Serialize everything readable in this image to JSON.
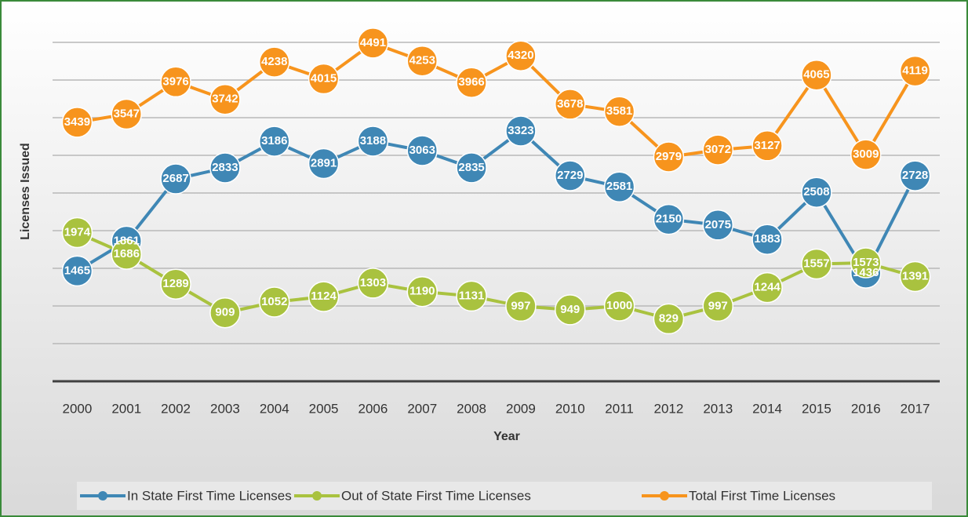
{
  "chart_data": {
    "type": "line",
    "x_label": "Year",
    "y_label": "Licenses Issued",
    "categories": [
      "2000",
      "2001",
      "2002",
      "2003",
      "2004",
      "2005",
      "2006",
      "2007",
      "2008",
      "2009",
      "2010",
      "2011",
      "2012",
      "2013",
      "2014",
      "2015",
      "2016",
      "2017"
    ],
    "series": [
      {
        "name": "In State First Time Licenses",
        "color": "#3f87b5",
        "values": [
          1465,
          1861,
          2687,
          2833,
          3186,
          2891,
          3188,
          3063,
          2835,
          3323,
          2729,
          2581,
          2150,
          2075,
          1883,
          2508,
          1436,
          2728
        ]
      },
      {
        "name": "Out of State First Time Licenses",
        "color": "#a9c23f",
        "values": [
          1974,
          1686,
          1289,
          909,
          1052,
          1124,
          1303,
          1190,
          1131,
          997,
          949,
          1000,
          829,
          997,
          1244,
          1557,
          1573,
          1391
        ]
      },
      {
        "name": "Total First Time Licenses",
        "color": "#f7941d",
        "values": [
          3439,
          3547,
          3976,
          3742,
          4238,
          4015,
          4491,
          4253,
          3966,
          4320,
          3678,
          3581,
          2979,
          3072,
          3127,
          4065,
          3009,
          4119
        ]
      }
    ],
    "ylim": [
      0,
      4500
    ],
    "yticks": [
      0,
      500,
      1000,
      1500,
      2000,
      2500,
      3000,
      3500,
      4000,
      4500
    ],
    "grid": true
  }
}
